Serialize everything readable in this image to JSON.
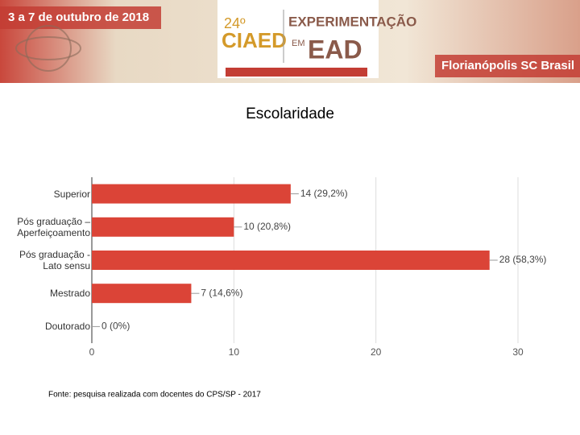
{
  "header": {
    "dates": "3 a 7 de outubro de 2018",
    "edition": "24º",
    "event": "CIAED",
    "theme_1": "EXPERIMENTAÇÃO",
    "theme_2": "EM",
    "theme_3": "EAD",
    "place": "Florianópolis SC Brasil"
  },
  "chart_data": {
    "type": "barh",
    "title": "Escolaridade",
    "categories": [
      "Superior",
      "Pós graduação – Aperfeiçoamento",
      "Pós graduação - Lato sensu",
      "Mestrado",
      "Doutorado"
    ],
    "values": [
      14,
      10,
      28,
      7,
      0
    ],
    "value_labels": [
      "14 (29,2%)",
      "10 (20,8%)",
      "28 (58,3%)",
      "7 (14,6%)",
      "0 (0%)"
    ],
    "color": "#db4437",
    "xlim": [
      0,
      30
    ],
    "xticks": [
      0,
      10,
      20,
      30
    ],
    "grid": true
  },
  "footer": {
    "source": "Fonte: pesquisa realizada com docentes do CPS/SP - 2017"
  }
}
